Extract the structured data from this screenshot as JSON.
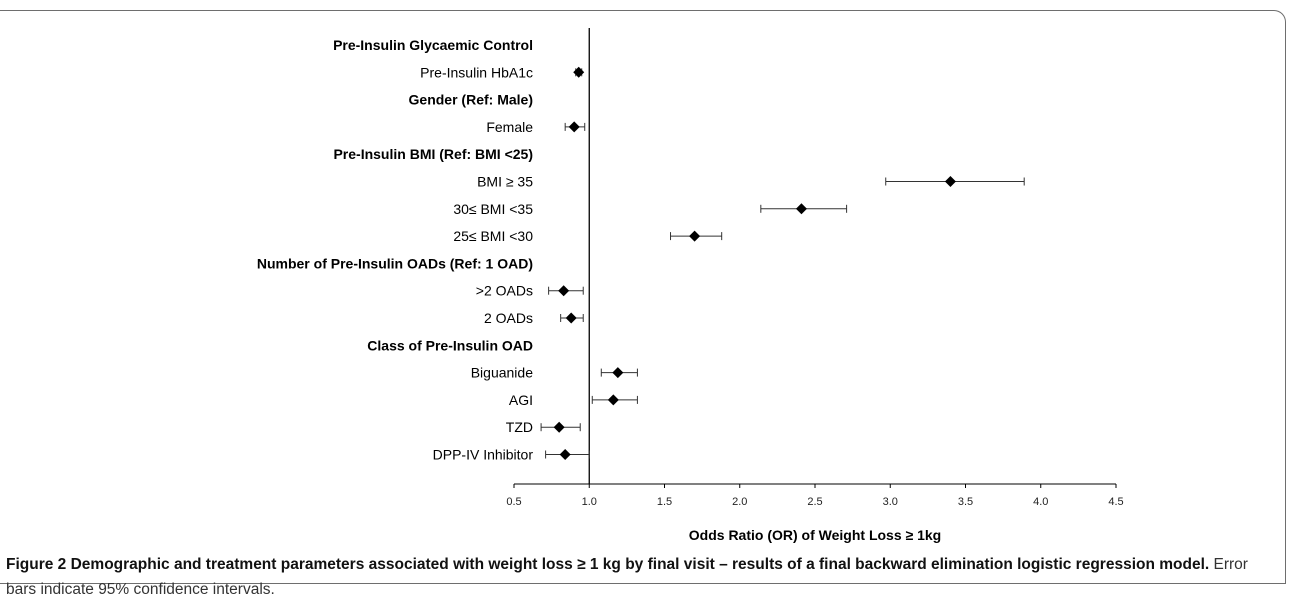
{
  "chart_data": {
    "type": "forest",
    "xlabel": "Odds Ratio (OR) of Weight Loss ≥ 1kg",
    "xlim": [
      0.5,
      4.5
    ],
    "xticks": [
      "0.5",
      "1.0",
      "1.5",
      "2.0",
      "2.5",
      "3.0",
      "3.5",
      "4.0",
      "4.5"
    ],
    "reference_line": 1.0,
    "rows": [
      {
        "label": "Pre-Insulin Glycaemic Control",
        "header": true
      },
      {
        "label": "Pre-Insulin HbA1c",
        "or": 0.93,
        "lo": 0.91,
        "hi": 0.95
      },
      {
        "label": "Gender (Ref: Male)",
        "header": true
      },
      {
        "label": "Female",
        "or": 0.9,
        "lo": 0.84,
        "hi": 0.97
      },
      {
        "label": "Pre-Insulin BMI (Ref: BMI <25)",
        "header": true
      },
      {
        "label": "BMI ≥ 35",
        "or": 3.4,
        "lo": 2.97,
        "hi": 3.89
      },
      {
        "label": "30≤ BMI <35",
        "or": 2.41,
        "lo": 2.14,
        "hi": 2.71
      },
      {
        "label": "25≤ BMI <30",
        "or": 1.7,
        "lo": 1.54,
        "hi": 1.88
      },
      {
        "label": "Number of Pre-Insulin OADs (Ref: 1 OAD)",
        "header": true
      },
      {
        "label": ">2 OADs",
        "or": 0.83,
        "lo": 0.73,
        "hi": 0.96
      },
      {
        "label": "2 OADs",
        "or": 0.88,
        "lo": 0.81,
        "hi": 0.96
      },
      {
        "label": "Class of Pre-Insulin OAD",
        "header": true
      },
      {
        "label": "Biguanide",
        "or": 1.19,
        "lo": 1.08,
        "hi": 1.32
      },
      {
        "label": "AGI",
        "or": 1.16,
        "lo": 1.02,
        "hi": 1.32
      },
      {
        "label": "TZD",
        "or": 0.8,
        "lo": 0.68,
        "hi": 0.94
      },
      {
        "label": "DPP-IV Inhibitor",
        "or": 0.84,
        "lo": 0.71,
        "hi": 1.0
      }
    ]
  },
  "caption": {
    "bold": "Figure 2 Demographic and treatment parameters associated with weight loss ≥ 1 kg by final visit – results of a final backward elimination logistic regression model.",
    "normal": " Error bars indicate 95% confidence intervals."
  }
}
